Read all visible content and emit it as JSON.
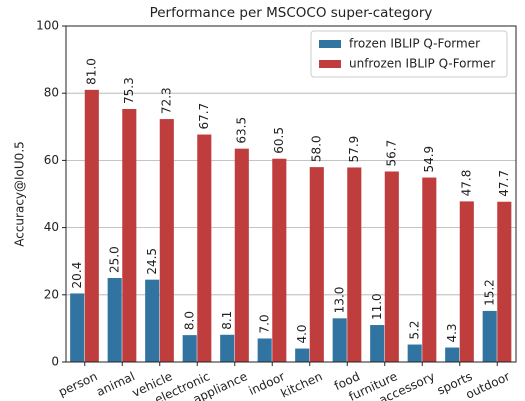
{
  "chart_data": {
    "type": "bar",
    "title": "Performance per MSCOCO super-category",
    "ylabel": "Accuracy@IoU0.5",
    "categories": [
      "person",
      "animal",
      "vehicle",
      "electronic",
      "appliance",
      "indoor",
      "kitchen",
      "food",
      "furniture",
      "accessory",
      "sports",
      "outdoor"
    ],
    "series": [
      {
        "name": "frozen IBLIP Q-Former",
        "color": "#3274a1",
        "values": [
          20.4,
          25.0,
          24.5,
          8.0,
          8.1,
          7.0,
          4.0,
          13.0,
          11.0,
          5.2,
          4.3,
          15.2
        ],
        "value_labels": [
          "20.4",
          "25.0",
          "24.5",
          "8.0",
          "8.1",
          "7.0",
          "4.0",
          "13.0",
          "11.0",
          "5.2",
          "4.3",
          "15.2"
        ]
      },
      {
        "name": "unfrozen IBLIP Q-Former",
        "color": "#c03d3e",
        "values": [
          81.0,
          75.3,
          72.3,
          67.7,
          63.5,
          60.5,
          58.0,
          57.9,
          56.7,
          54.9,
          47.8,
          47.7
        ],
        "value_labels": [
          "81.0",
          "75.3",
          "72.3",
          "67.7",
          "63.5",
          "60.5",
          "58.0",
          "57.9",
          "56.7",
          "54.9",
          "47.8",
          "47.7"
        ]
      }
    ],
    "ylim": [
      0,
      100
    ],
    "yticks": [
      0,
      20,
      40,
      60,
      80,
      100
    ],
    "grid": true,
    "legend": "upper right"
  }
}
